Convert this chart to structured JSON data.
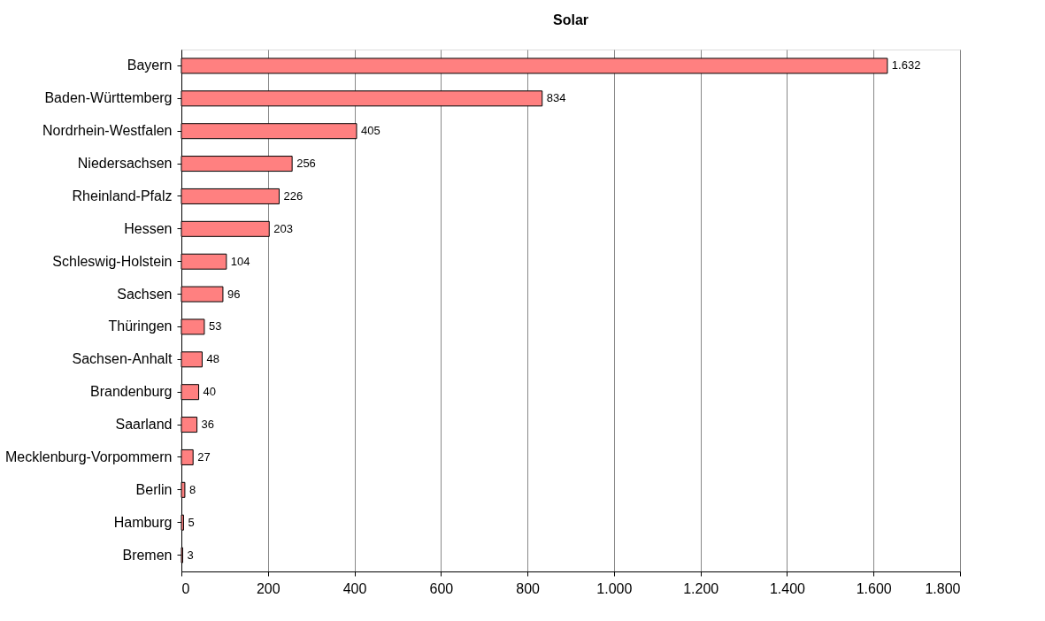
{
  "chart_data": {
    "type": "bar",
    "orientation": "horizontal",
    "title": "Solar",
    "categories": [
      "Bayern",
      "Baden-Württemberg",
      "Nordrhein-Westfalen",
      "Niedersachsen",
      "Rheinland-Pfalz",
      "Hessen",
      "Schleswig-Holstein",
      "Sachsen",
      "Thüringen",
      "Sachsen-Anhalt",
      "Brandenburg",
      "Saarland",
      "Mecklenburg-Vorpommern",
      "Berlin",
      "Hamburg",
      "Bremen"
    ],
    "values": [
      1632,
      834,
      405,
      256,
      226,
      203,
      104,
      96,
      53,
      48,
      40,
      36,
      27,
      8,
      5,
      3
    ],
    "value_labels": [
      "1.632",
      "834",
      "405",
      "256",
      "226",
      "203",
      "104",
      "96",
      "53",
      "48",
      "40",
      "36",
      "27",
      "8",
      "5",
      "3"
    ],
    "color": "#ff8080",
    "xlim": [
      0,
      1800
    ],
    "xticks": [
      0,
      200,
      400,
      600,
      800,
      {
        "value": 1000,
        "label": "1.000"
      },
      {
        "value": 1200,
        "label": "1.200"
      },
      {
        "value": 1400,
        "label": "1.400"
      },
      {
        "value": 1600,
        "label": "1.600"
      },
      {
        "value": 1800,
        "label": "1.800"
      }
    ],
    "grid": "x"
  }
}
